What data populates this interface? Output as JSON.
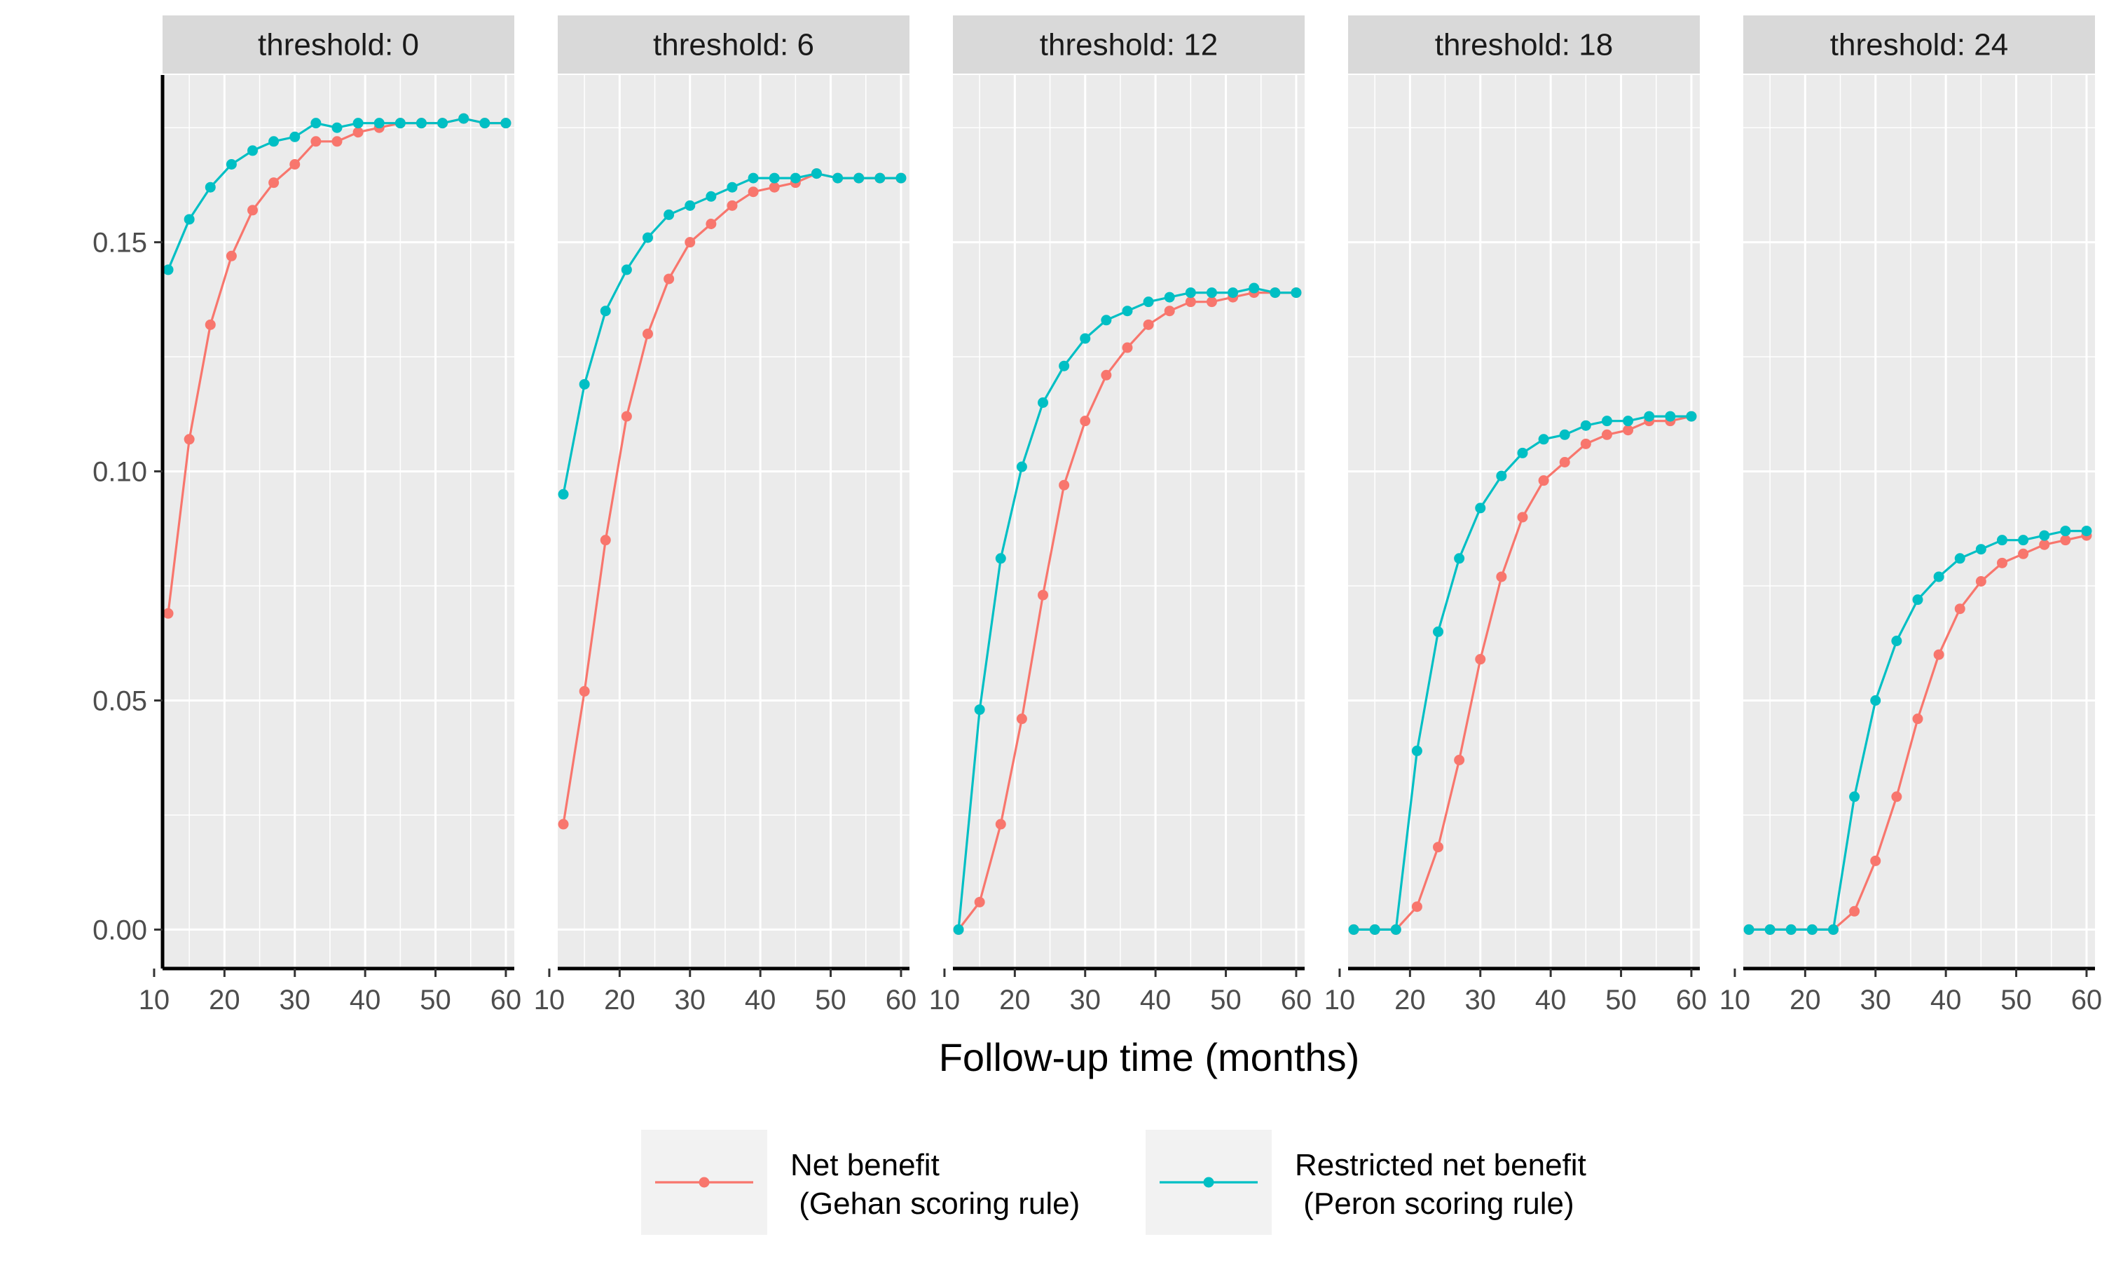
{
  "chart_data": {
    "type": "line",
    "xlabel": "Follow-up time (months)",
    "ylabel": "",
    "x": [
      12,
      15,
      18,
      21,
      24,
      27,
      30,
      33,
      36,
      39,
      42,
      45,
      48,
      51,
      54,
      57,
      60
    ],
    "xlim": [
      11.2,
      61.2
    ],
    "ylim": [
      -0.0085,
      0.1865
    ],
    "x_ticks": [
      "10",
      "20",
      "30",
      "40",
      "50",
      "60"
    ],
    "x_tick_values": [
      10,
      20,
      30,
      40,
      50,
      60
    ],
    "y_ticks": [
      "0.00",
      "0.05",
      "0.10",
      "0.15"
    ],
    "y_tick_values": [
      0,
      0.05,
      0.1,
      0.15
    ],
    "grid": true,
    "legend_position": "bottom",
    "colors": {
      "net_benefit": "#F8766D",
      "restricted": "#00BFC4",
      "panel_bg": "#EBEBEB",
      "strip_bg": "#D9D9D9",
      "grid": "#FFFFFF"
    },
    "legend": [
      {
        "name_line1": "Net benefit",
        "name_line2": " (Gehan scoring rule)",
        "color": "#F8766D"
      },
      {
        "name_line1": "Restricted net benefit",
        "name_line2": " (Peron scoring rule)",
        "color": "#00BFC4"
      }
    ],
    "panels": [
      {
        "label": "threshold: 0",
        "series": [
          {
            "values": [
              0.069,
              0.107,
              0.132,
              0.147,
              0.157,
              0.163,
              0.167,
              0.172,
              0.172,
              0.174,
              0.175,
              0.176,
              0.176,
              0.176,
              0.177,
              0.176,
              0.176
            ]
          },
          {
            "values": [
              0.144,
              0.155,
              0.162,
              0.167,
              0.17,
              0.172,
              0.173,
              0.176,
              0.175,
              0.176,
              0.176,
              0.176,
              0.176,
              0.176,
              0.177,
              0.176,
              0.176
            ]
          }
        ]
      },
      {
        "label": "threshold: 6",
        "series": [
          {
            "values": [
              0.023,
              0.052,
              0.085,
              0.112,
              0.13,
              0.142,
              0.15,
              0.154,
              0.158,
              0.161,
              0.162,
              0.163,
              0.165,
              0.164,
              0.164,
              0.164,
              0.164
            ]
          },
          {
            "values": [
              0.095,
              0.119,
              0.135,
              0.144,
              0.151,
              0.156,
              0.158,
              0.16,
              0.162,
              0.164,
              0.164,
              0.164,
              0.165,
              0.164,
              0.164,
              0.164,
              0.164
            ]
          }
        ]
      },
      {
        "label": "threshold: 12",
        "series": [
          {
            "values": [
              0.0,
              0.006,
              0.023,
              0.046,
              0.073,
              0.097,
              0.111,
              0.121,
              0.127,
              0.132,
              0.135,
              0.137,
              0.137,
              0.138,
              0.139,
              0.139,
              0.139
            ]
          },
          {
            "values": [
              0.0,
              0.048,
              0.081,
              0.101,
              0.115,
              0.123,
              0.129,
              0.133,
              0.135,
              0.137,
              0.138,
              0.139,
              0.139,
              0.139,
              0.14,
              0.139,
              0.139
            ]
          }
        ]
      },
      {
        "label": "threshold: 18",
        "series": [
          {
            "values": [
              0.0,
              0.0,
              0.0,
              0.005,
              0.018,
              0.037,
              0.059,
              0.077,
              0.09,
              0.098,
              0.102,
              0.106,
              0.108,
              0.109,
              0.111,
              0.111,
              0.112
            ]
          },
          {
            "values": [
              0.0,
              0.0,
              0.0,
              0.039,
              0.065,
              0.081,
              0.092,
              0.099,
              0.104,
              0.107,
              0.108,
              0.11,
              0.111,
              0.111,
              0.112,
              0.112,
              0.112
            ]
          }
        ]
      },
      {
        "label": "threshold: 24",
        "series": [
          {
            "values": [
              0.0,
              0.0,
              0.0,
              0.0,
              0.0,
              0.004,
              0.015,
              0.029,
              0.046,
              0.06,
              0.07,
              0.076,
              0.08,
              0.082,
              0.084,
              0.085,
              0.086
            ]
          },
          {
            "values": [
              0.0,
              0.0,
              0.0,
              0.0,
              0.0,
              0.029,
              0.05,
              0.063,
              0.072,
              0.077,
              0.081,
              0.083,
              0.085,
              0.085,
              0.086,
              0.087,
              0.087
            ]
          }
        ]
      }
    ]
  }
}
